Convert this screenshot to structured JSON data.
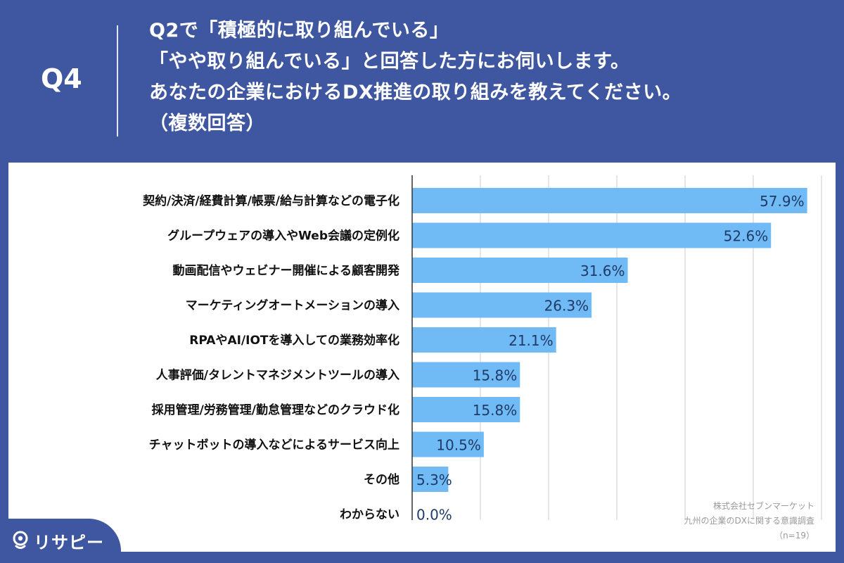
{
  "header": {
    "question_number": "Q4",
    "question_lines": [
      "Q2で「積極的に取り組んでいる」",
      "「やや取り組んでいる」と回答した方にお伺いします。",
      "あなたの企業におけるDX推進の取り組みを教えてください。",
      "（複数回答）"
    ]
  },
  "chart_data": {
    "type": "bar",
    "orientation": "horizontal",
    "categories": [
      "契約/決済/経費計算/帳票/給与計算などの電子化",
      "グループウェアの導入やWeb会議の定例化",
      "動画配信やウェビナー開催による顧客開発",
      "マーケティングオートメーションの導入",
      "RPAやAI/IOTを導入しての業務効率化",
      "人事評価/タレントマネジメントツールの導入",
      "採用管理/労務管理/勤怠管理などのクラウド化",
      "チャットボットの導入などによるサービス向上",
      "その他",
      "わからない"
    ],
    "values": [
      57.9,
      52.6,
      31.6,
      26.3,
      21.1,
      15.8,
      15.8,
      10.5,
      5.3,
      0.0
    ],
    "value_labels": [
      "57.9%",
      "52.6%",
      "31.6%",
      "26.3%",
      "21.1%",
      "15.8%",
      "15.8%",
      "10.5%",
      "5.3%",
      "0.0%"
    ],
    "xlim": [
      0,
      60
    ],
    "grid": true,
    "bar_color": "#70baf6"
  },
  "source": {
    "company": "株式会社セブンマーケット",
    "survey": "九州の企業のDXに関する意識調査",
    "sample": "（n=19）"
  },
  "logo": {
    "text": "リサピー",
    "icon": "pin-icon"
  },
  "colors": {
    "background": "#3f57a0",
    "panel": "#ffffff",
    "bar": "#70baf6",
    "grid": "#cccccc"
  }
}
